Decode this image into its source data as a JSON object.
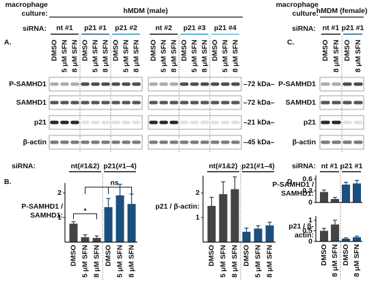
{
  "header": {
    "culture_label": "macrophage culture:",
    "male": "hMDM (male)",
    "female": "hMDM (female)",
    "sirna_label": "siRNA:"
  },
  "panels": {
    "A": "A.",
    "B": "B.",
    "C": "C.",
    "D": "D."
  },
  "blot_A": {
    "groups": [
      "nt #1",
      "p21 #1",
      "p21 #2",
      "nt #2",
      "p21 #3",
      "p21 #4"
    ],
    "group_colors": [
      "#111111",
      "#1f5a8a",
      "#2a8fc0",
      "#111111",
      "#2a9fc8",
      "#5fb8e0"
    ],
    "lanes": [
      "DMSO",
      "5 μM SFN",
      "8 μM SFN"
    ],
    "rows": [
      "P-SAMHD1",
      "SAMHD1",
      "p21",
      "β-actin"
    ],
    "markers": [
      "–72 kDa–",
      "–72 kDa–",
      "–21 kDa–",
      "–45 kDa–"
    ]
  },
  "blot_C": {
    "groups": [
      "nt #1",
      "p21 #1"
    ],
    "group_colors": [
      "#111111",
      "#1f5a8a"
    ],
    "lanes": [
      "DMSO",
      "8 μM SFN"
    ],
    "rows": [
      "P-SAMHD1",
      "SAMHD1",
      "p21",
      "β-actin"
    ]
  },
  "chart_data": [
    {
      "type": "bar",
      "ylabel": "P-SAMHD1 / SAMHD1:",
      "ylim": [
        0,
        2.4
      ],
      "yticks": [
        1,
        2
      ],
      "annotations": [
        "*",
        "ns"
      ],
      "groups": [
        {
          "name": "nt(#1&2)",
          "color": "#444444",
          "categories": [
            "DMSO",
            "5 μM SFN",
            "8 μM SFN"
          ],
          "values": [
            0.75,
            0.2,
            0.17
          ],
          "errors": [
            0.08,
            0.1,
            0.08
          ]
        },
        {
          "name": "p21(#1–4)",
          "color": "#1b4f7e",
          "categories": [
            "DMSO",
            "5 μM SFN",
            "8 μM SFN"
          ],
          "values": [
            1.42,
            1.9,
            1.55
          ],
          "errors": [
            0.35,
            0.45,
            0.4
          ]
        }
      ]
    },
    {
      "type": "bar",
      "ylabel": "p21 / β-actin:",
      "ylim": [
        0,
        2.7
      ],
      "yticks": [
        1,
        2
      ],
      "groups": [
        {
          "name": "nt(#1&2)",
          "color": "#444444",
          "categories": [
            "DMSO",
            "5 μM SFN",
            "8 μM SFN"
          ],
          "values": [
            1.47,
            1.95,
            2.15
          ],
          "errors": [
            0.35,
            0.5,
            0.5
          ]
        },
        {
          "name": "p21(#1–4)",
          "color": "#1b4f7e",
          "categories": [
            "DMSO",
            "5 μM SFN",
            "8 μM SFN"
          ],
          "values": [
            0.42,
            0.55,
            0.68
          ],
          "errors": [
            0.15,
            0.12,
            0.13
          ]
        }
      ]
    },
    {
      "type": "bar",
      "ylabel": "P-SAMHD1 / SAMHD1:",
      "ylim": [
        0,
        0.7
      ],
      "yticks": [
        0,
        0.3,
        0.6
      ],
      "groups": [
        {
          "name": "nt #1",
          "color": "#444444",
          "values": [
            0.27,
            0.09
          ],
          "errors": [
            0.05,
            0.04
          ]
        },
        {
          "name": "p21 #1",
          "color": "#1b4f7e",
          "values": [
            0.46,
            0.49
          ],
          "errors": [
            0.06,
            0.08
          ]
        }
      ]
    },
    {
      "type": "bar",
      "ylabel": "p21 / β-actin:",
      "ylim": [
        0,
        1.2
      ],
      "yticks": [
        0,
        0.5,
        1
      ],
      "groups": [
        {
          "color": "#444444",
          "categories": [
            "DMSO",
            "8 μM SFN"
          ],
          "values": [
            0.5,
            0.8
          ],
          "errors": [
            0.12,
            0.2
          ]
        },
        {
          "color": "#1b4f7e",
          "categories": [
            "DMSO",
            "8 μM SFN"
          ],
          "values": [
            0.13,
            0.2
          ],
          "errors": [
            0.04,
            0.05
          ]
        }
      ]
    }
  ]
}
